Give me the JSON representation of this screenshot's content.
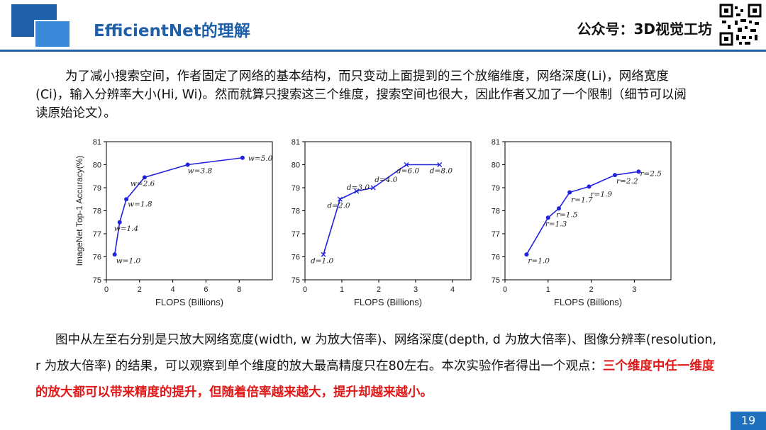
{
  "header": {
    "title": "EfficientNet的理解",
    "brand": "公众号：3D视觉工坊"
  },
  "intro": "为了减小搜索空间，作者固定了网络的基本结构，而只变动上面提到的三个放缩维度，网络深度(Li)，网络宽度(Ci)，输入分辨率大小(Hi, Wi)。然而就算只搜索这三个维度，搜索空间也很大，因此作者又加了一个限制（细节可以阅读原始论文）。",
  "conclusion": {
    "text": "图中从左至右分别是只放大网络宽度(width, w 为放大倍率)、网络深度(depth, d 为放大倍率)、图像分辨率(resolution, r 为放大倍率) 的结果，可以观察到单个维度的放大最高精度只在80左右。本次实验作者得出一个观点：",
    "highlight": "三个维度中任一维度的放大都可以带来精度的提升，但随着倍率越来越大，提升却越来越小。",
    "highlight_color": "#e01818"
  },
  "page_number": "19",
  "colors": {
    "accent": "#1f5fa8",
    "line": "#2222dd"
  },
  "chart_data": [
    {
      "type": "line",
      "xlabel": "FLOPS (Billions)",
      "ylabel": "ImageNet Top-1 Accuracy(%)",
      "xlim": [
        0,
        10
      ],
      "ylim": [
        75,
        81
      ],
      "xticks": [
        0,
        2,
        4,
        6,
        8
      ],
      "yticks": [
        75,
        76,
        77,
        78,
        79,
        80,
        81
      ],
      "marker": "circle",
      "points": [
        {
          "x": 0.5,
          "y": 76.1,
          "label": "w=1.0"
        },
        {
          "x": 0.8,
          "y": 77.5,
          "label": "w=1.4"
        },
        {
          "x": 1.2,
          "y": 78.5,
          "label": "w=1.8"
        },
        {
          "x": 2.3,
          "y": 79.45,
          "label": "w=2.6"
        },
        {
          "x": 4.9,
          "y": 80.0,
          "label": "w=3.8"
        },
        {
          "x": 8.2,
          "y": 80.3,
          "label": "w=5.0"
        }
      ]
    },
    {
      "type": "line",
      "xlabel": "FLOPS (Billions)",
      "ylabel": "",
      "xlim": [
        0,
        4.5
      ],
      "ylim": [
        75,
        81
      ],
      "xticks": [
        0,
        1,
        2,
        3,
        4
      ],
      "yticks": [
        75,
        76,
        77,
        78,
        79,
        80,
        81
      ],
      "marker": "x",
      "points": [
        {
          "x": 0.5,
          "y": 76.1,
          "label": "d=1.0"
        },
        {
          "x": 0.95,
          "y": 78.5,
          "label": "d=2.0"
        },
        {
          "x": 1.4,
          "y": 78.85,
          "label": "d=3.0"
        },
        {
          "x": 1.85,
          "y": 79.0,
          "label": "d=4.0"
        },
        {
          "x": 2.75,
          "y": 80.0,
          "label": "d=6.0"
        },
        {
          "x": 3.65,
          "y": 80.0,
          "label": "d=8.0"
        }
      ]
    },
    {
      "type": "line",
      "xlabel": "FLOPS (Billions)",
      "ylabel": "",
      "xlim": [
        0,
        3.85
      ],
      "ylim": [
        75,
        81
      ],
      "xticks": [
        0,
        1,
        2,
        3
      ],
      "yticks": [
        75,
        76,
        77,
        78,
        79,
        80,
        81
      ],
      "marker": "circle",
      "points": [
        {
          "x": 0.5,
          "y": 76.1,
          "label": "r=1.0"
        },
        {
          "x": 1.0,
          "y": 77.7,
          "label": "r=1.3"
        },
        {
          "x": 1.25,
          "y": 78.1,
          "label": "r=1.5"
        },
        {
          "x": 1.5,
          "y": 78.8,
          "label": "r=1.7"
        },
        {
          "x": 1.95,
          "y": 79.05,
          "label": "r=1.9"
        },
        {
          "x": 2.55,
          "y": 79.55,
          "label": "r=2.2"
        },
        {
          "x": 3.1,
          "y": 79.7,
          "label": "r=2.5"
        }
      ]
    }
  ]
}
